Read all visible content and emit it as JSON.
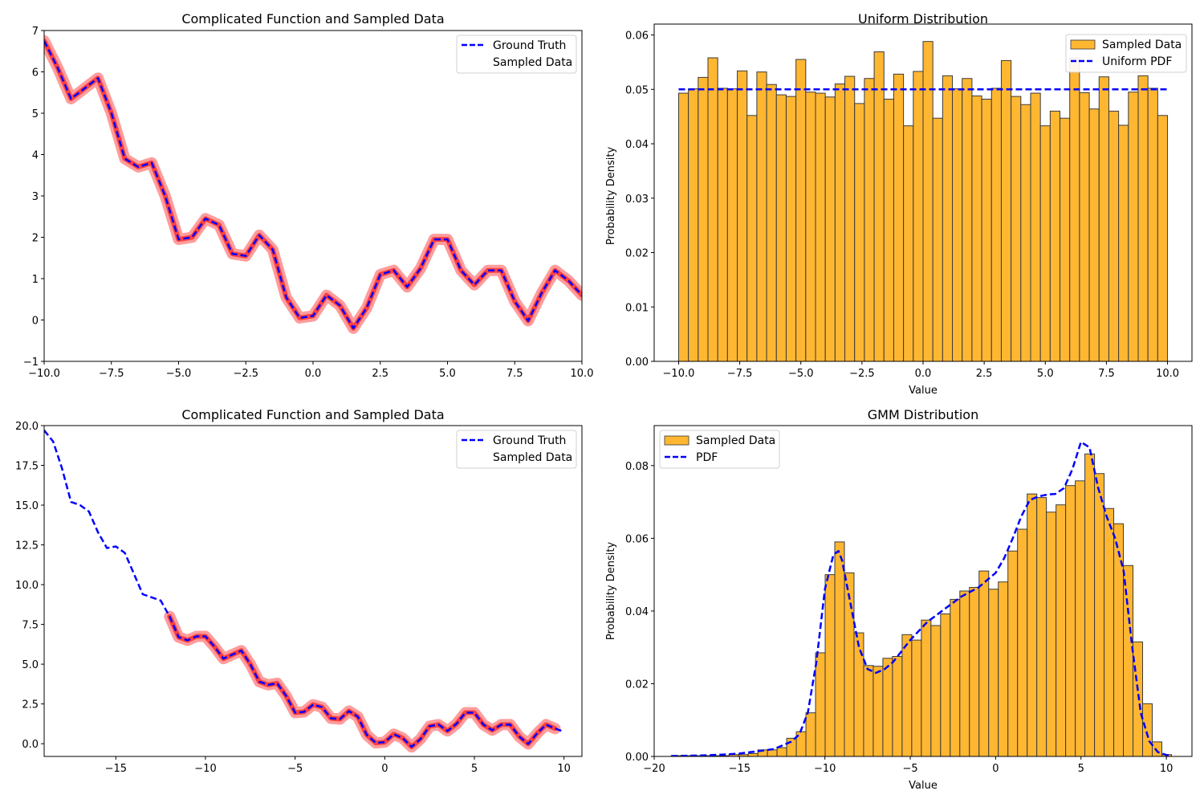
{
  "chart_data": [
    {
      "type": "line",
      "title": "Complicated Function and Sampled Data",
      "xlabel": "",
      "ylabel": "",
      "xlim": [
        -10,
        10
      ],
      "ylim": [
        -1,
        7
      ],
      "xticks": [
        "−10.0",
        "−7.5",
        "−5.0",
        "−2.5",
        "0.0",
        "2.5",
        "5.0",
        "7.5",
        "10.0"
      ],
      "xtick_values": [
        -10,
        -7.5,
        -5,
        -2.5,
        0,
        2.5,
        5,
        7.5,
        10
      ],
      "yticks": [
        "−1",
        "0",
        "1",
        "2",
        "3",
        "4",
        "5",
        "6",
        "7"
      ],
      "ytick_values": [
        -1,
        0,
        1,
        2,
        3,
        4,
        5,
        6,
        7
      ],
      "legend_position": "top-right",
      "series": [
        {
          "name": "Ground Truth",
          "color": "#0000ff",
          "style": "dashed",
          "x": [
            -10,
            -9.5,
            -9,
            -8.5,
            -8,
            -7.5,
            -7,
            -6.5,
            -6,
            -5.5,
            -5,
            -4.5,
            -4,
            -3.5,
            -3,
            -2.5,
            -2,
            -1.5,
            -1,
            -0.5,
            0,
            0.5,
            1,
            1.5,
            2,
            2.5,
            3,
            3.5,
            4,
            4.5,
            5,
            5.5,
            6,
            6.5,
            7,
            7.5,
            8,
            8.5,
            9,
            9.5,
            10
          ],
          "y": [
            6.75,
            6.1,
            5.35,
            5.6,
            5.85,
            5.0,
            3.9,
            3.7,
            3.8,
            3.0,
            1.95,
            2.0,
            2.45,
            2.3,
            1.6,
            1.55,
            2.05,
            1.7,
            0.55,
            0.05,
            0.1,
            0.6,
            0.35,
            -0.2,
            0.3,
            1.1,
            1.2,
            0.8,
            1.25,
            1.95,
            1.95,
            1.2,
            0.85,
            1.2,
            1.2,
            0.45,
            -0.02,
            0.65,
            1.2,
            0.95,
            0.6
          ]
        },
        {
          "name": "Sampled Data",
          "color": "#ff0000",
          "style": "scatter-dense",
          "x_range": [
            -10,
            10
          ]
        }
      ]
    },
    {
      "type": "bar",
      "title": "Uniform Distribution",
      "xlabel": "Value",
      "ylabel": "Probability Density",
      "xlim": [
        -11,
        11
      ],
      "ylim": [
        0,
        0.062
      ],
      "xticks": [
        "−10.0",
        "−7.5",
        "−5.0",
        "−2.5",
        "0.0",
        "2.5",
        "5.0",
        "7.5",
        "10.0"
      ],
      "xtick_values": [
        -10,
        -7.5,
        -5,
        -2.5,
        0,
        2.5,
        5,
        7.5,
        10
      ],
      "yticks": [
        "0.00",
        "0.01",
        "0.02",
        "0.03",
        "0.04",
        "0.05",
        "0.06"
      ],
      "ytick_values": [
        0,
        0.01,
        0.02,
        0.03,
        0.04,
        0.05,
        0.06
      ],
      "legend_position": "top-right",
      "bin_range": [
        -10,
        10
      ],
      "bar_color": "#ffb732",
      "values": [
        0.0493,
        0.0501,
        0.0522,
        0.0558,
        0.0502,
        0.0501,
        0.0534,
        0.0452,
        0.0532,
        0.0509,
        0.049,
        0.0487,
        0.0555,
        0.0495,
        0.0493,
        0.0486,
        0.051,
        0.0524,
        0.0474,
        0.052,
        0.0569,
        0.0482,
        0.0528,
        0.0433,
        0.0533,
        0.0588,
        0.0447,
        0.0525,
        0.0501,
        0.052,
        0.0488,
        0.0482,
        0.0502,
        0.0553,
        0.0487,
        0.0472,
        0.0493,
        0.0433,
        0.046,
        0.0447,
        0.0558,
        0.0494,
        0.0464,
        0.0523,
        0.046,
        0.0434,
        0.0495,
        0.0525,
        0.0502,
        0.0452
      ],
      "series": [
        {
          "name": "Sampled Data",
          "color": "#ffb732"
        },
        {
          "name": "Uniform PDF",
          "color": "#0000ff",
          "style": "dashed",
          "x": [
            -10,
            10
          ],
          "y": [
            0.05,
            0.05
          ]
        }
      ]
    },
    {
      "type": "line",
      "title": "Complicated Function and Sampled Data",
      "xlabel": "",
      "ylabel": "",
      "xlim": [
        -19,
        11
      ],
      "ylim": [
        -0.8,
        20
      ],
      "xticks": [
        "−15",
        "−10",
        "−5",
        "0",
        "5",
        "10"
      ],
      "xtick_values": [
        -15,
        -10,
        -5,
        0,
        5,
        10
      ],
      "yticks": [
        "0.0",
        "2.5",
        "5.0",
        "7.5",
        "10.0",
        "12.5",
        "15.0",
        "17.5",
        "20.0"
      ],
      "ytick_values": [
        0,
        2.5,
        5,
        7.5,
        10,
        12.5,
        15,
        17.5,
        20
      ],
      "legend_position": "top-right",
      "series": [
        {
          "name": "Ground Truth",
          "color": "#0000ff",
          "style": "dashed",
          "x": [
            -19,
            -18.5,
            -18,
            -17.5,
            -17,
            -16.5,
            -16,
            -15.5,
            -15,
            -14.5,
            -14,
            -13.5,
            -13,
            -12.5,
            -12,
            -11.5,
            -11,
            -10.5,
            -10,
            -9.5,
            -9,
            -8.5,
            -8,
            -7.5,
            -7,
            -6.5,
            -6,
            -5.5,
            -5,
            -4.5,
            -4,
            -3.5,
            -3,
            -2.5,
            -2,
            -1.5,
            -1,
            -0.5,
            0,
            0.5,
            1,
            1.5,
            2,
            2.5,
            3,
            3.5,
            4,
            4.5,
            5,
            5.5,
            6,
            6.5,
            7,
            7.5,
            8,
            8.5,
            9,
            9.5,
            10
          ],
          "y": [
            19.7,
            19.0,
            17.3,
            15.2,
            15.0,
            14.6,
            13.3,
            12.3,
            12.4,
            12.0,
            10.7,
            9.4,
            9.2,
            9.0,
            8.0,
            6.7,
            6.5,
            6.75,
            6.75,
            6.1,
            5.35,
            5.6,
            5.85,
            5.0,
            3.9,
            3.7,
            3.8,
            3.0,
            1.95,
            2.0,
            2.45,
            2.3,
            1.6,
            1.55,
            2.05,
            1.7,
            0.55,
            0.05,
            0.1,
            0.6,
            0.35,
            -0.2,
            0.3,
            1.1,
            1.2,
            0.8,
            1.25,
            1.95,
            1.95,
            1.2,
            0.85,
            1.2,
            1.2,
            0.45,
            -0.02,
            0.65,
            1.2,
            0.95,
            0.75
          ]
        },
        {
          "name": "Sampled Data",
          "color": "#ff0000",
          "style": "scatter-dense",
          "x_range": [
            -12,
            9.5
          ]
        }
      ]
    },
    {
      "type": "bar",
      "title": "GMM Distribution",
      "xlabel": "Value",
      "ylabel": "Probability Density",
      "xlim": [
        -20,
        11.5
      ],
      "ylim": [
        0,
        0.091
      ],
      "xticks": [
        "−20",
        "−15",
        "−10",
        "−5",
        "0",
        "5",
        "10"
      ],
      "xtick_values": [
        -20,
        -15,
        -10,
        -5,
        0,
        5,
        10
      ],
      "yticks": [
        "0.00",
        "0.02",
        "0.04",
        "0.06",
        "0.08"
      ],
      "ytick_values": [
        0,
        0.02,
        0.04,
        0.06,
        0.08
      ],
      "legend_position": "top-left",
      "bin_range": [
        -19,
        10.3
      ],
      "bar_color": "#ffb732",
      "values": [
        0.0002,
        0.0002,
        0.0002,
        0.0002,
        0.0002,
        0.0002,
        0.0005,
        0.0005,
        0.0008,
        0.0018,
        0.0018,
        0.0024,
        0.005,
        0.0068,
        0.012,
        0.0285,
        0.05,
        0.059,
        0.0505,
        0.034,
        0.025,
        0.0248,
        0.027,
        0.0275,
        0.0335,
        0.032,
        0.0375,
        0.036,
        0.0392,
        0.0432,
        0.0455,
        0.0465,
        0.051,
        0.046,
        0.048,
        0.0565,
        0.0625,
        0.0722,
        0.0712,
        0.0672,
        0.0692,
        0.0745,
        0.0758,
        0.0832,
        0.0778,
        0.0682,
        0.064,
        0.0525,
        0.0315,
        0.0145,
        0.004,
        0.0005
      ],
      "series": [
        {
          "name": "Sampled Data",
          "color": "#ffb732"
        },
        {
          "name": "PDF",
          "color": "#0000ff",
          "style": "dashed",
          "x": [
            -19,
            -18,
            -17,
            -16,
            -15,
            -14,
            -13,
            -12,
            -11.5,
            -11,
            -10.5,
            -10,
            -9.5,
            -9.2,
            -9,
            -8.5,
            -8,
            -7.5,
            -7,
            -6.5,
            -6,
            -5,
            -4,
            -3,
            -2,
            -1,
            0,
            0.5,
            1,
            1.5,
            2,
            2.5,
            3,
            3.5,
            4,
            4.5,
            5,
            5.5,
            6,
            6.5,
            7,
            7.5,
            8,
            8.5,
            9,
            9.5,
            10,
            10.3
          ],
          "y": [
            0.0001,
            0.0002,
            0.0003,
            0.0005,
            0.0008,
            0.0014,
            0.002,
            0.004,
            0.006,
            0.012,
            0.026,
            0.046,
            0.0555,
            0.0565,
            0.054,
            0.042,
            0.03,
            0.024,
            0.023,
            0.024,
            0.026,
            0.032,
            0.037,
            0.0405,
            0.044,
            0.0465,
            0.0505,
            0.0545,
            0.06,
            0.066,
            0.0705,
            0.0715,
            0.072,
            0.0722,
            0.0738,
            0.079,
            0.0865,
            0.085,
            0.074,
            0.066,
            0.06,
            0.051,
            0.03,
            0.012,
            0.0042,
            0.0012,
            0.0004,
            0.0002
          ]
        }
      ]
    }
  ]
}
